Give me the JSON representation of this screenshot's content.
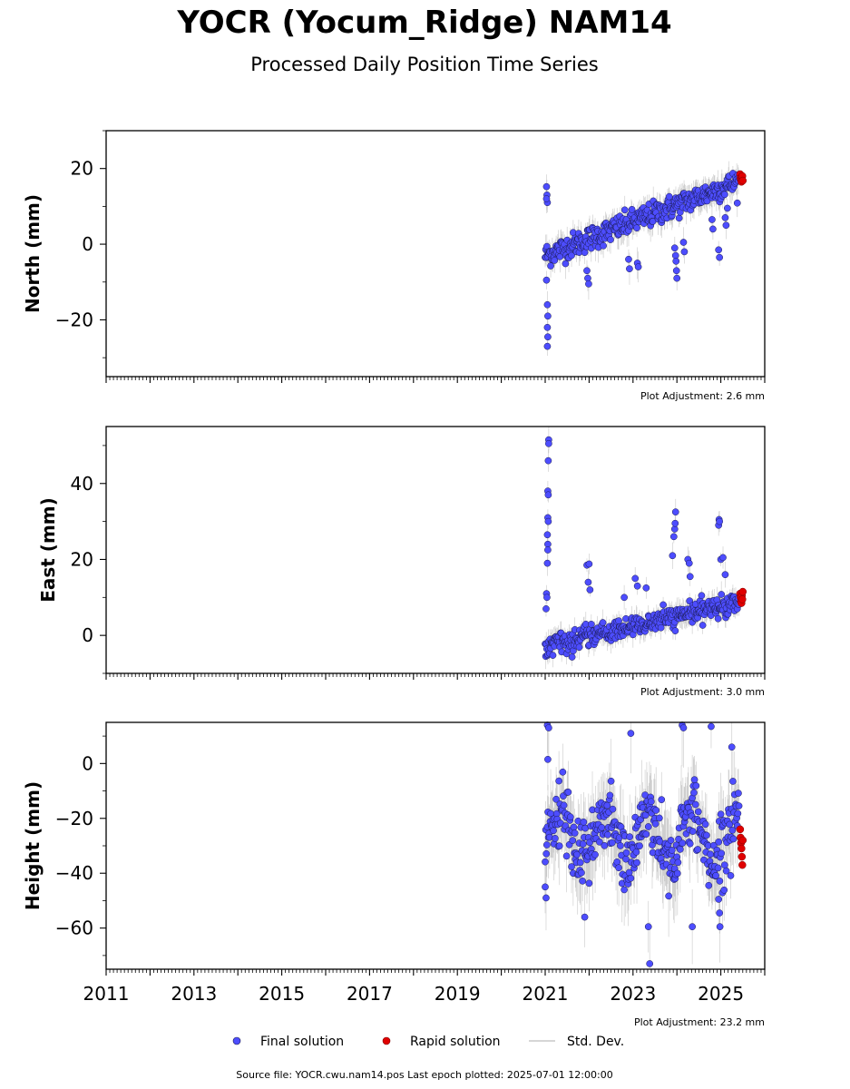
{
  "header": {
    "title": "YOCR (Yocum_Ridge) NAM14",
    "subtitle": "Processed Daily Position Time Series"
  },
  "colors": {
    "final": "#4d4dff",
    "rapid": "#e00000",
    "stddev": "#b0b0b0",
    "edge": "#1a1a4d"
  },
  "legend": {
    "final": "Final solution",
    "rapid": "Rapid solution",
    "stddev": "Std. Dev."
  },
  "source_note": "Source file: YOCR.cwu.nam14.pos  Last epoch plotted: 2025-07-01 12:00:00",
  "chart_data": [
    {
      "type": "scatter",
      "ylabel": "North (mm)",
      "adjustment": "Plot Adjustment: 2.6 mm",
      "xlim": [
        2011.0,
        2026.0
      ],
      "ylim": [
        -35,
        30
      ],
      "yticks": [
        -20,
        0,
        20
      ],
      "yticklabels": [
        "−20",
        "0",
        "20"
      ],
      "trend": {
        "start": [
          2021.0,
          -3.0
        ],
        "end": [
          2025.5,
          17.0
        ]
      },
      "noise": 1.6,
      "seasonal_amp": 0.0,
      "outliers": [
        [
          2021.03,
          15.2
        ],
        [
          2021.04,
          13.0
        ],
        [
          2021.05,
          11.0
        ],
        [
          2021.03,
          12.0
        ],
        [
          2021.05,
          -16.0
        ],
        [
          2021.06,
          -19.0
        ],
        [
          2021.05,
          -22.0
        ],
        [
          2021.06,
          -24.5
        ],
        [
          2021.05,
          -27.0
        ],
        [
          2021.03,
          -9.5
        ],
        [
          2021.95,
          -7.0
        ],
        [
          2021.97,
          -9.0
        ],
        [
          2021.99,
          -10.5
        ],
        [
          2022.9,
          -4.0
        ],
        [
          2022.92,
          -6.5
        ],
        [
          2023.1,
          -5.0
        ],
        [
          2023.12,
          -6.0
        ],
        [
          2023.95,
          -1.0
        ],
        [
          2023.97,
          -3.0
        ],
        [
          2023.98,
          -4.5
        ],
        [
          2023.99,
          -7.0
        ],
        [
          2024.0,
          -9.0
        ],
        [
          2024.15,
          0.5
        ],
        [
          2024.17,
          -2.0
        ],
        [
          2024.8,
          6.5
        ],
        [
          2024.82,
          4.0
        ],
        [
          2024.95,
          -1.5
        ],
        [
          2024.97,
          -3.5
        ],
        [
          2025.1,
          7.0
        ],
        [
          2025.12,
          5.0
        ],
        [
          2025.15,
          9.5
        ]
      ],
      "rapid": [
        [
          2025.44,
          18.5
        ],
        [
          2025.45,
          17.5
        ],
        [
          2025.46,
          17.0
        ],
        [
          2025.47,
          16.5
        ],
        [
          2025.48,
          17.8
        ],
        [
          2025.49,
          18.0
        ],
        [
          2025.5,
          16.8
        ]
      ]
    },
    {
      "type": "scatter",
      "ylabel": "East (mm)",
      "adjustment": "Plot Adjustment: 3.0 mm",
      "xlim": [
        2011.0,
        2026.0
      ],
      "ylim": [
        -10,
        55
      ],
      "yticks": [
        0,
        20,
        40
      ],
      "yticklabels": [
        "0",
        "20",
        "40"
      ],
      "trend": {
        "start": [
          2021.0,
          -3.0
        ],
        "end": [
          2025.5,
          9.0
        ]
      },
      "noise": 1.3,
      "seasonal_amp": 0.0,
      "outliers": [
        [
          2021.08,
          51.5
        ],
        [
          2021.08,
          50.5
        ],
        [
          2021.07,
          46.0
        ],
        [
          2021.06,
          38.0
        ],
        [
          2021.07,
          37.0
        ],
        [
          2021.06,
          31.0
        ],
        [
          2021.07,
          30.0
        ],
        [
          2021.05,
          26.5
        ],
        [
          2021.06,
          24.0
        ],
        [
          2021.06,
          22.5
        ],
        [
          2021.05,
          19.0
        ],
        [
          2021.03,
          11.0
        ],
        [
          2021.04,
          10.0
        ],
        [
          2021.02,
          7.0
        ],
        [
          2021.95,
          18.5
        ],
        [
          2022.0,
          18.8
        ],
        [
          2021.98,
          14.0
        ],
        [
          2022.02,
          12.0
        ],
        [
          2022.8,
          10.0
        ],
        [
          2023.05,
          15.0
        ],
        [
          2023.1,
          13.0
        ],
        [
          2023.3,
          12.5
        ],
        [
          2023.9,
          21.0
        ],
        [
          2023.93,
          26.0
        ],
        [
          2023.95,
          28.0
        ],
        [
          2023.96,
          29.5
        ],
        [
          2023.97,
          32.5
        ],
        [
          2024.25,
          20.0
        ],
        [
          2024.28,
          19.0
        ],
        [
          2024.3,
          15.5
        ],
        [
          2024.95,
          29.0
        ],
        [
          2024.96,
          30.5
        ],
        [
          2024.97,
          30.0
        ],
        [
          2025.0,
          20.0
        ],
        [
          2025.05,
          20.5
        ],
        [
          2025.1,
          16.0
        ]
      ],
      "rapid": [
        [
          2025.44,
          11.0
        ],
        [
          2025.45,
          10.0
        ],
        [
          2025.46,
          9.0
        ],
        [
          2025.47,
          8.5
        ],
        [
          2025.48,
          10.5
        ],
        [
          2025.49,
          9.5
        ],
        [
          2025.5,
          11.5
        ]
      ]
    },
    {
      "type": "scatter",
      "ylabel": "Height (mm)",
      "adjustment": "Plot Adjustment: 23.2 mm",
      "xlim": [
        2011.0,
        2026.0
      ],
      "ylim": [
        -75,
        15
      ],
      "yticks": [
        -60,
        -40,
        -20,
        0
      ],
      "yticklabels": [
        "−60",
        "−40",
        "−20",
        "0"
      ],
      "xticks": [
        2011,
        2013,
        2015,
        2017,
        2019,
        2021,
        2023,
        2025
      ],
      "xticklabels": [
        "2011",
        "2013",
        "2015",
        "2017",
        "2019",
        "2021",
        "2023",
        "2025"
      ],
      "trend": {
        "start": [
          2021.0,
          -27.0
        ],
        "end": [
          2025.5,
          -27.0
        ]
      },
      "noise": 6.0,
      "seasonal_amp": 9.0,
      "outliers": [
        [
          2021.05,
          14.0
        ],
        [
          2021.08,
          13.0
        ],
        [
          2021.06,
          1.5
        ],
        [
          2021.0,
          -45.0
        ],
        [
          2021.02,
          -49.0
        ],
        [
          2021.9,
          -56.0
        ],
        [
          2022.95,
          11.0
        ],
        [
          2023.35,
          -59.5
        ],
        [
          2023.38,
          -73.0
        ],
        [
          2024.12,
          14.0
        ],
        [
          2024.15,
          13.0
        ],
        [
          2024.35,
          -59.5
        ],
        [
          2024.78,
          13.5
        ],
        [
          2024.95,
          -49.5
        ],
        [
          2024.97,
          -54.5
        ],
        [
          2024.98,
          -59.5
        ],
        [
          2025.25,
          6.0
        ]
      ],
      "rapid": [
        [
          2025.44,
          -24.0
        ],
        [
          2025.45,
          -27.0
        ],
        [
          2025.46,
          -29.0
        ],
        [
          2025.47,
          -31.0
        ],
        [
          2025.48,
          -34.0
        ],
        [
          2025.49,
          -37.0
        ],
        [
          2025.5,
          -28.0
        ]
      ]
    }
  ]
}
